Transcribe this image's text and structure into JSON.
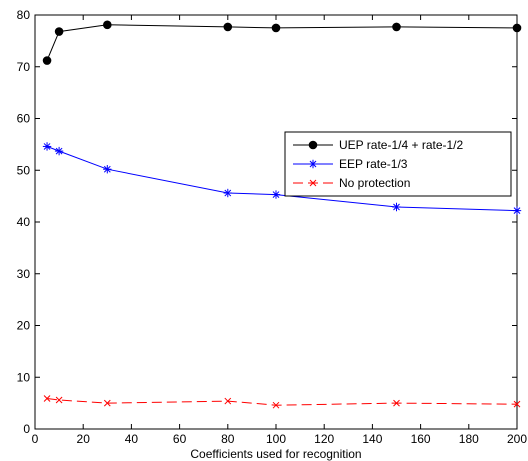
{
  "chart_data": {
    "type": "line",
    "title": "",
    "xlabel": "Coefficients used for recognition",
    "ylabel": "",
    "xlim": [
      0,
      200
    ],
    "ylim": [
      0,
      80
    ],
    "x_ticks": [
      0,
      20,
      40,
      60,
      80,
      100,
      120,
      140,
      160,
      180,
      200
    ],
    "y_ticks": [
      0,
      10,
      20,
      30,
      40,
      50,
      60,
      70,
      80
    ],
    "grid": false,
    "legend_position": "right",
    "series": [
      {
        "name": "UEP rate-1/4 + rate-1/2",
        "color": "#000000",
        "marker": "filled-circle",
        "line_style": "solid",
        "x": [
          5,
          10,
          30,
          80,
          100,
          150,
          200
        ],
        "y": [
          71.2,
          76.8,
          78.1,
          77.7,
          77.5,
          77.7,
          77.5
        ]
      },
      {
        "name": "EEP rate-1/3",
        "color": "#0000ff",
        "marker": "asterisk",
        "line_style": "solid",
        "x": [
          5,
          10,
          30,
          80,
          100,
          150,
          200
        ],
        "y": [
          54.6,
          53.7,
          50.2,
          45.6,
          45.3,
          42.9,
          42.2
        ]
      },
      {
        "name": "No protection",
        "color": "#ff0000",
        "marker": "x",
        "line_style": "dashed",
        "x": [
          5,
          10,
          30,
          80,
          100,
          150,
          200
        ],
        "y": [
          5.9,
          5.6,
          5.0,
          5.4,
          4.6,
          5.0,
          4.8
        ]
      }
    ]
  }
}
